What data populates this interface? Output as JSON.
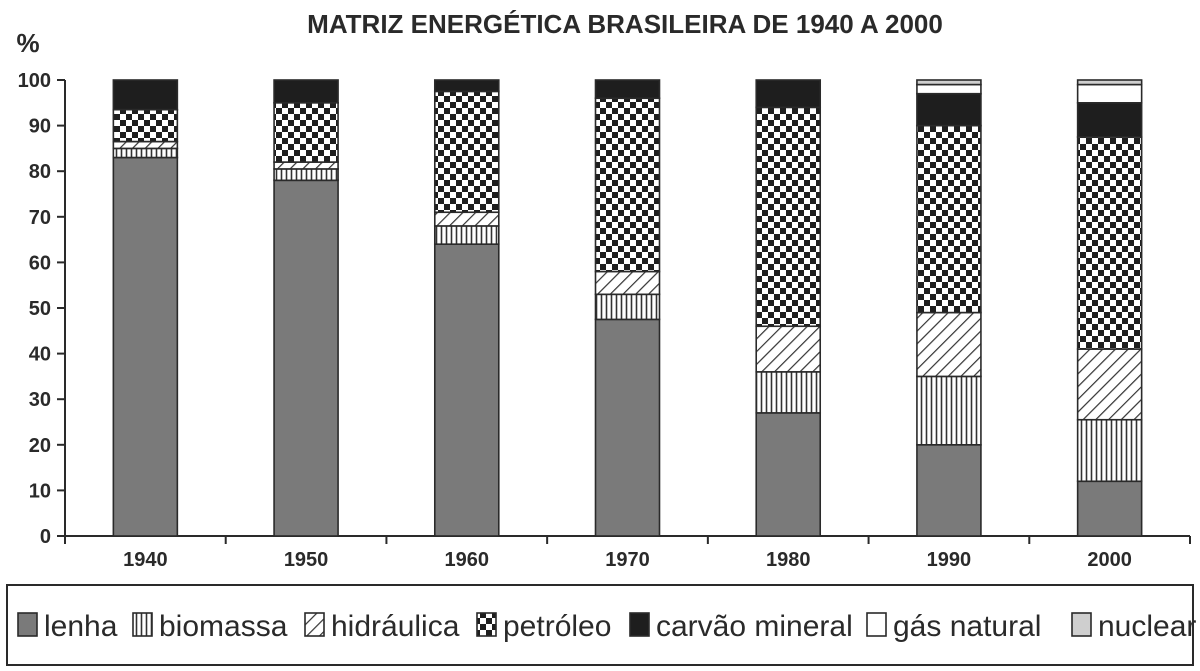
{
  "chart_data": {
    "type": "bar",
    "stacked": true,
    "title": "MATRIZ ENERGÉTICA BRASILEIRA DE 1940 A 2000",
    "ylabel": "%",
    "xlabel": "",
    "ylim": [
      0,
      100
    ],
    "yticks": [
      0,
      10,
      20,
      30,
      40,
      50,
      60,
      70,
      80,
      90,
      100
    ],
    "categories": [
      "1940",
      "1950",
      "1960",
      "1970",
      "1980",
      "1990",
      "2000"
    ],
    "series": [
      {
        "name": "lenha",
        "pattern": "solid-gray",
        "values": [
          83,
          78,
          64,
          47.5,
          27,
          20,
          12
        ]
      },
      {
        "name": "biomassa",
        "pattern": "vertical-lines",
        "values": [
          2,
          2.5,
          4,
          5.5,
          9,
          15,
          13.5
        ]
      },
      {
        "name": "hidráulica",
        "pattern": "diagonal-lines",
        "values": [
          1.5,
          1.5,
          3,
          5,
          10,
          14,
          15.5
        ]
      },
      {
        "name": "petróleo",
        "pattern": "checker",
        "values": [
          7,
          13,
          26.5,
          38,
          48,
          41,
          46.5
        ]
      },
      {
        "name": "carvão mineral",
        "pattern": "solid-black",
        "values": [
          6.5,
          5,
          2.5,
          4,
          6,
          7,
          7.5
        ]
      },
      {
        "name": "gás natural",
        "pattern": "white",
        "values": [
          0,
          0,
          0,
          0,
          0,
          2,
          4
        ]
      },
      {
        "name": "nuclear",
        "pattern": "light-gray",
        "values": [
          0,
          0,
          0,
          0,
          0,
          1,
          1
        ]
      }
    ],
    "grid": false,
    "legend_position": "bottom"
  },
  "colors": {
    "lenha": "#7a7a7a",
    "carvao": "#1e1e1e",
    "nuclear": "#cfcfcf",
    "ink": "#2a2a2a"
  }
}
